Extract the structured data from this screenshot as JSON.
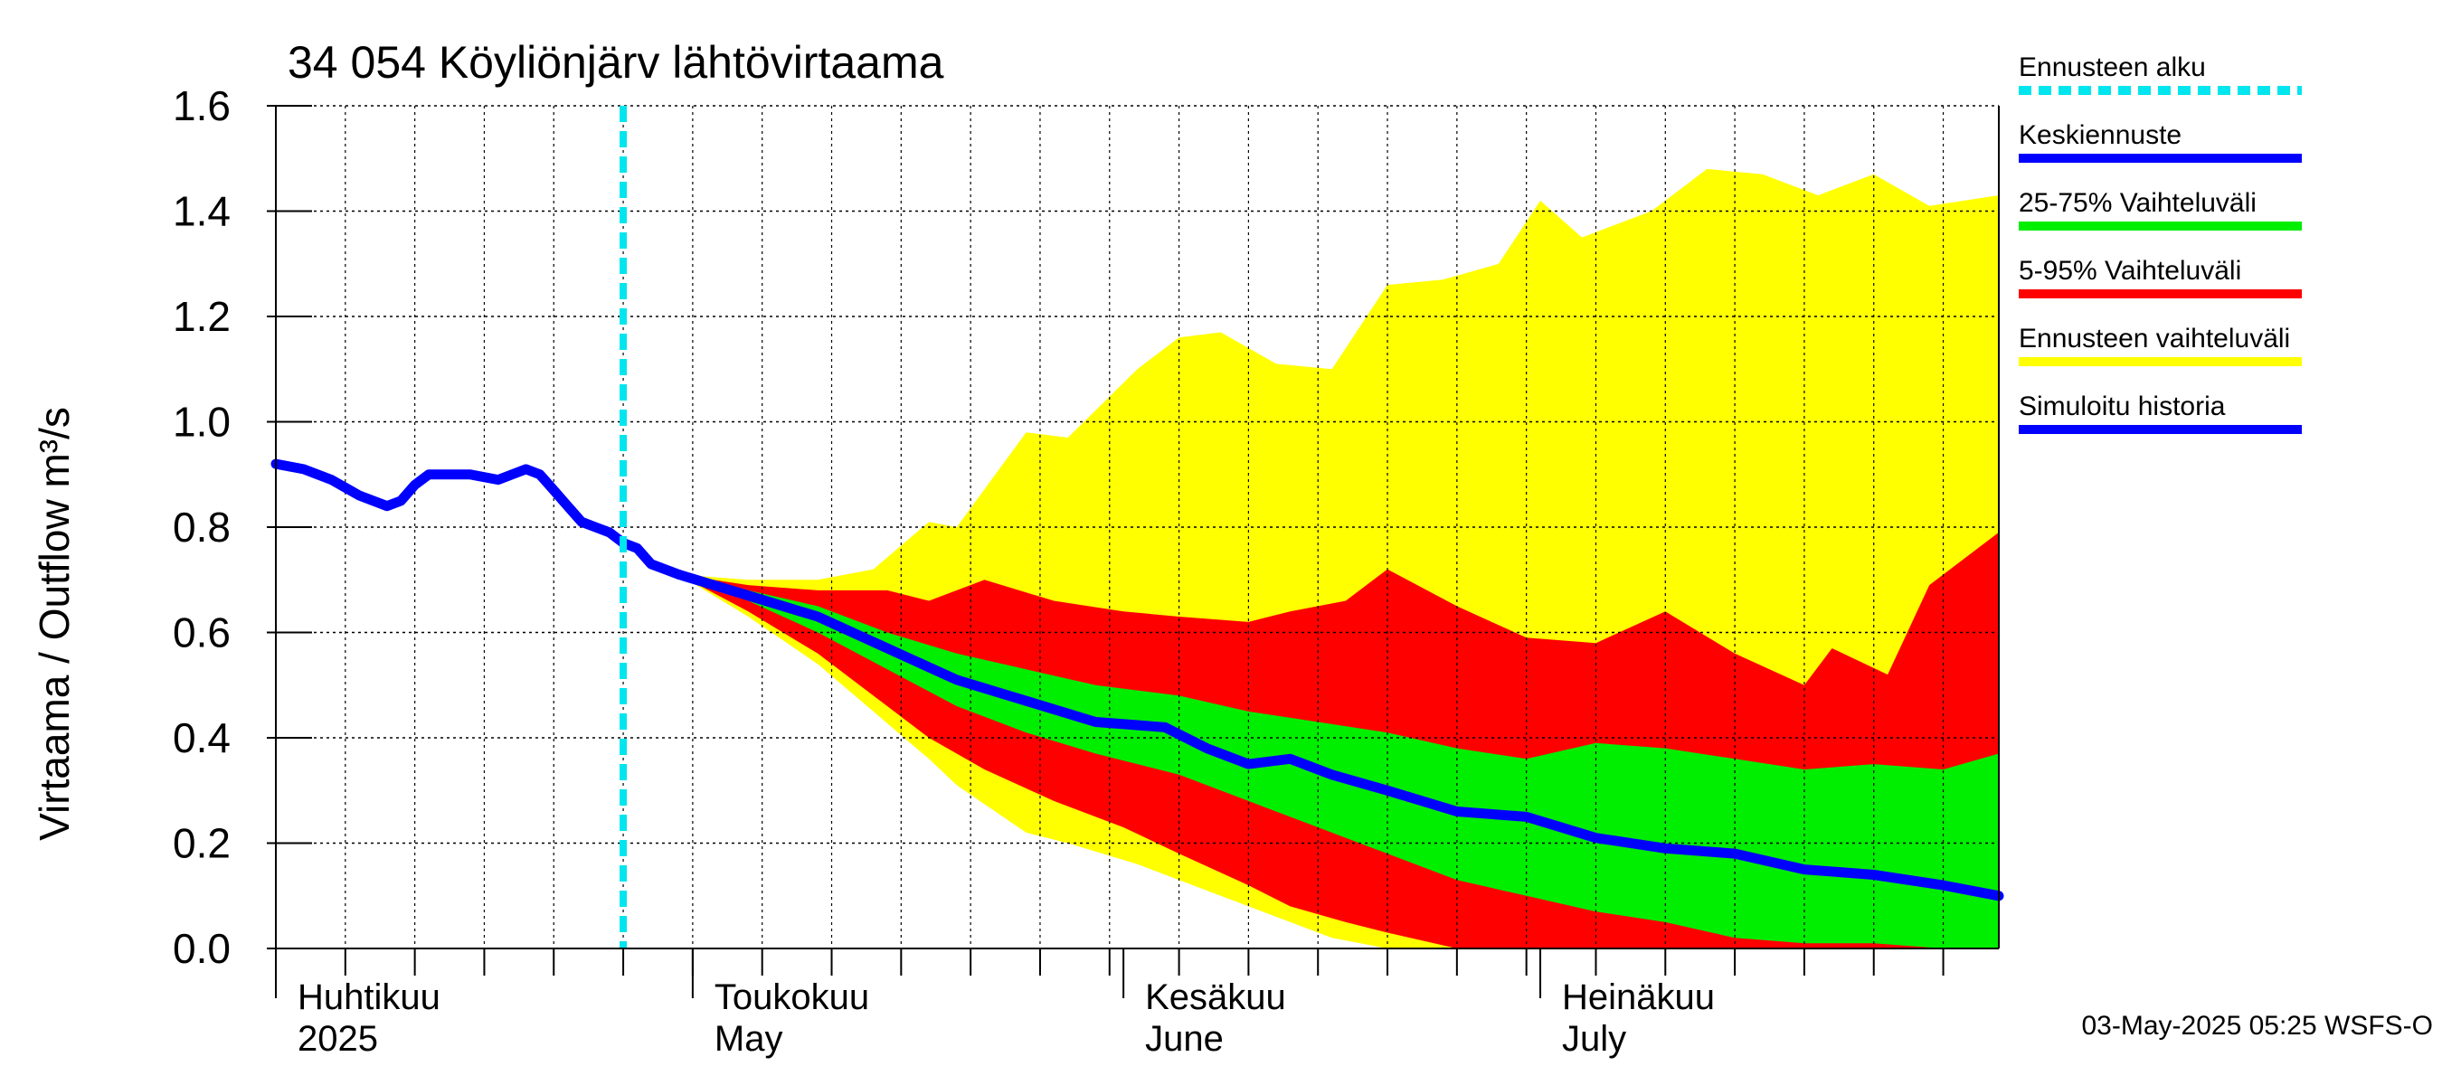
{
  "chart_data": {
    "type": "area",
    "title": "34 054 Köyliönjärv lähtövirtaama",
    "ylabel": "Virtaama / Outflow    m³/s",
    "ylim": [
      0.0,
      1.6
    ],
    "yticks": [
      "0.0",
      "0.2",
      "0.4",
      "0.6",
      "0.8",
      "1.0",
      "1.2",
      "1.4",
      "1.6"
    ],
    "xlim": [
      "2025-04-01",
      "2025-08-03"
    ],
    "forecast_start": "2025-04-26",
    "months": [
      {
        "fi": "Huhtikuu",
        "en": "2025",
        "date": "2025-04-01"
      },
      {
        "fi": "Toukokuu",
        "en": "May",
        "date": "2025-05-01"
      },
      {
        "fi": "Kesäkuu",
        "en": "June",
        "date": "2025-06-01"
      },
      {
        "fi": "Heinäkuu",
        "en": "July",
        "date": "2025-07-01"
      }
    ],
    "grid": true,
    "legend_position": "right",
    "history": {
      "name": "Simuloitu historia",
      "x": [
        "2025-04-01",
        "2025-04-03",
        "2025-04-05",
        "2025-04-07",
        "2025-04-09",
        "2025-04-10",
        "2025-04-11",
        "2025-04-12",
        "2025-04-13",
        "2025-04-15",
        "2025-04-17",
        "2025-04-19",
        "2025-04-20",
        "2025-04-21",
        "2025-04-22",
        "2025-04-23",
        "2025-04-24",
        "2025-04-25",
        "2025-04-26",
        "2025-04-27",
        "2025-04-28",
        "2025-04-29",
        "2025-04-30"
      ],
      "values": [
        0.92,
        0.91,
        0.89,
        0.86,
        0.84,
        0.85,
        0.88,
        0.9,
        0.9,
        0.9,
        0.89,
        0.91,
        0.9,
        0.87,
        0.84,
        0.81,
        0.8,
        0.79,
        0.77,
        0.76,
        0.73,
        0.72,
        0.71
      ]
    },
    "median": {
      "name": "Keskiennuste",
      "x": [
        "2025-04-30",
        "2025-05-05",
        "2025-05-10",
        "2025-05-15",
        "2025-05-20",
        "2025-05-25",
        "2025-05-30",
        "2025-06-04",
        "2025-06-07",
        "2025-06-10",
        "2025-06-13",
        "2025-06-16",
        "2025-06-20",
        "2025-06-25",
        "2025-06-30",
        "2025-07-05",
        "2025-07-10",
        "2025-07-15",
        "2025-07-20",
        "2025-07-25",
        "2025-07-30",
        "2025-08-03"
      ],
      "values": [
        0.71,
        0.67,
        0.63,
        0.57,
        0.51,
        0.47,
        0.43,
        0.42,
        0.38,
        0.35,
        0.36,
        0.33,
        0.3,
        0.26,
        0.25,
        0.21,
        0.19,
        0.18,
        0.15,
        0.14,
        0.12,
        0.1
      ]
    },
    "band_25_75": {
      "name": "25-75% Vaihteluväli",
      "x": [
        "2025-04-30",
        "2025-05-05",
        "2025-05-10",
        "2025-05-15",
        "2025-05-20",
        "2025-05-25",
        "2025-05-30",
        "2025-06-05",
        "2025-06-10",
        "2025-06-15",
        "2025-06-20",
        "2025-06-25",
        "2025-06-30",
        "2025-07-05",
        "2025-07-10",
        "2025-07-15",
        "2025-07-20",
        "2025-07-25",
        "2025-07-30",
        "2025-08-03"
      ],
      "upper": [
        0.71,
        0.68,
        0.65,
        0.6,
        0.56,
        0.53,
        0.5,
        0.48,
        0.45,
        0.43,
        0.41,
        0.38,
        0.36,
        0.39,
        0.38,
        0.36,
        0.34,
        0.35,
        0.34,
        0.37
      ],
      "lower": [
        0.71,
        0.66,
        0.6,
        0.53,
        0.46,
        0.41,
        0.37,
        0.33,
        0.28,
        0.23,
        0.18,
        0.13,
        0.1,
        0.07,
        0.05,
        0.02,
        0.01,
        0.01,
        0.0,
        0.0
      ]
    },
    "band_5_95": {
      "name": "5-95% Vaihteluväli",
      "x": [
        "2025-04-30",
        "2025-05-05",
        "2025-05-10",
        "2025-05-15",
        "2025-05-18",
        "2025-05-22",
        "2025-05-27",
        "2025-06-01",
        "2025-06-05",
        "2025-06-10",
        "2025-06-13",
        "2025-06-17",
        "2025-06-20",
        "2025-06-25",
        "2025-06-30",
        "2025-07-05",
        "2025-07-10",
        "2025-07-15",
        "2025-07-20",
        "2025-07-22",
        "2025-07-26",
        "2025-07-29",
        "2025-08-03"
      ],
      "upper": [
        0.71,
        0.69,
        0.68,
        0.68,
        0.66,
        0.7,
        0.66,
        0.64,
        0.63,
        0.62,
        0.64,
        0.66,
        0.72,
        0.65,
        0.59,
        0.58,
        0.64,
        0.56,
        0.5,
        0.57,
        0.52,
        0.69,
        0.79
      ],
      "lower": [
        0.71,
        0.64,
        0.56,
        0.46,
        0.4,
        0.34,
        0.28,
        0.23,
        0.18,
        0.12,
        0.08,
        0.05,
        0.03,
        0.0,
        0.0,
        0.0,
        0.0,
        0.0,
        0.0,
        0.0,
        0.0,
        0.0,
        0.0
      ]
    },
    "band_full": {
      "name": "Ennusteen vaihteluväli",
      "x": [
        "2025-04-30",
        "2025-05-05",
        "2025-05-10",
        "2025-05-14",
        "2025-05-18",
        "2025-05-20",
        "2025-05-25",
        "2025-05-28",
        "2025-06-02",
        "2025-06-05",
        "2025-06-08",
        "2025-06-12",
        "2025-06-16",
        "2025-06-20",
        "2025-06-24",
        "2025-06-28",
        "2025-07-01",
        "2025-07-04",
        "2025-07-09",
        "2025-07-13",
        "2025-07-17",
        "2025-07-21",
        "2025-07-25",
        "2025-07-29",
        "2025-08-03"
      ],
      "upper": [
        0.71,
        0.7,
        0.7,
        0.72,
        0.81,
        0.8,
        0.98,
        0.97,
        1.1,
        1.16,
        1.17,
        1.11,
        1.1,
        1.26,
        1.27,
        1.3,
        1.42,
        1.35,
        1.4,
        1.48,
        1.47,
        1.43,
        1.47,
        1.41,
        1.43
      ],
      "lower": [
        0.71,
        0.63,
        0.54,
        0.45,
        0.36,
        0.31,
        0.22,
        0.2,
        0.16,
        0.13,
        0.1,
        0.06,
        0.02,
        0.0,
        0.0,
        0.0,
        0.0,
        0.0,
        0.0,
        0.0,
        0.0,
        0.0,
        0.0,
        0.0,
        0.0
      ]
    }
  },
  "legend": [
    {
      "label": "Ennusteen alku",
      "color": "#00e5ee",
      "style": "dashed"
    },
    {
      "label": "Keskiennuste",
      "color": "#0000ff",
      "style": "solid"
    },
    {
      "label": "25-75% Vaihteluväli",
      "color": "#00ee00",
      "style": "solid"
    },
    {
      "label": "5-95% Vaihteluväli",
      "color": "#ff0000",
      "style": "solid"
    },
    {
      "label": "Ennusteen vaihteluväli",
      "color": "#ffff00",
      "style": "solid"
    },
    {
      "label": "Simuloitu historia",
      "color": "#0000ff",
      "style": "solid"
    }
  ],
  "colors": {
    "full": "#ffff00",
    "p5_95": "#ff0000",
    "p25_75": "#00ee00",
    "median": "#0000ff",
    "history": "#0000ff",
    "forecast_start": "#00e5ee",
    "grid": "#000000"
  },
  "footer": "03-May-2025 05:25 WSFS-O"
}
